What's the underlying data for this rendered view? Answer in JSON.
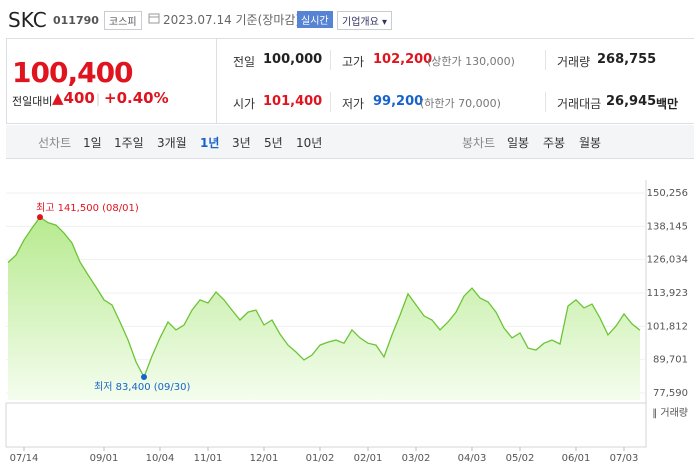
{
  "header": {
    "name": "SKC",
    "code": "011790",
    "market": "코스피",
    "date": "2023.07.14 기준(장마감)",
    "realtime": "실시간",
    "company_info": "기업개요"
  },
  "quote": {
    "price": "100,400",
    "change_label": "전일대비",
    "change": "400",
    "change_pct": "+0.40%",
    "stats": [
      {
        "label": "전일",
        "value": "100,000"
      },
      {
        "label": "고가",
        "value": "102,200",
        "note": "(상한가 130,000)",
        "color": "#e0141e"
      },
      {
        "label": "거래량",
        "value": "268,755"
      },
      {
        "label": "시가",
        "value": "101,400",
        "color": "#e0141e"
      },
      {
        "label": "저가",
        "value": "99,200",
        "note": "(하한가 70,000)",
        "color": "#1763c9"
      },
      {
        "label": "거래대금",
        "value": "26,945",
        "unit": "백만"
      }
    ]
  },
  "line_tabs": {
    "label": "선차트",
    "items": [
      "1일",
      "1주일",
      "3개월",
      "1년",
      "3년",
      "5년",
      "10년"
    ],
    "selected": "1년"
  },
  "candle_tabs": {
    "label": "봉차트",
    "items": [
      "일봉",
      "주봉",
      "월봉"
    ]
  },
  "chart_data": {
    "type": "area",
    "categories": [
      null,
      null,
      "07/14",
      null,
      null,
      null,
      null,
      null,
      null,
      null,
      null,
      null,
      "09/01",
      null,
      null,
      null,
      null,
      null,
      null,
      "10/04",
      null,
      null,
      null,
      null,
      null,
      "11/01",
      null,
      null,
      null,
      null,
      null,
      null,
      "12/01",
      null,
      null,
      null,
      null,
      null,
      null,
      "01/02",
      null,
      null,
      null,
      null,
      null,
      "02/01",
      null,
      null,
      null,
      null,
      null,
      "03/02",
      null,
      null,
      null,
      null,
      null,
      null,
      "04/03",
      null,
      null,
      null,
      null,
      null,
      "05/02",
      null,
      null,
      null,
      null,
      null,
      null,
      "06/01",
      null,
      null,
      null,
      null,
      null,
      "07/03",
      null,
      null
    ],
    "series": [
      {
        "color": "#6cc437",
        "values": [
          125000,
          127700,
          133200,
          137500,
          141500,
          139500,
          138600,
          135700,
          132100,
          125200,
          120500,
          116100,
          111400,
          109600,
          103400,
          96900,
          88900,
          83400,
          91000,
          97600,
          103400,
          100500,
          102300,
          107700,
          111400,
          110300,
          114300,
          111400,
          107700,
          104100,
          107000,
          107700,
          102300,
          104100,
          99000,
          95000,
          92500,
          89600,
          91400,
          95000,
          96100,
          96800,
          95700,
          100500,
          97600,
          95700,
          95000,
          90700,
          98700,
          105900,
          113600,
          109600,
          105600,
          104100,
          100500,
          103400,
          107000,
          112800,
          115700,
          112100,
          110700,
          107000,
          101200,
          97600,
          99400,
          93900,
          93200,
          95700,
          96800,
          95400,
          109200,
          111400,
          108500,
          109900,
          104800,
          98700,
          101900,
          106300,
          102700,
          100400
        ]
      }
    ],
    "ylim": [
      77590,
      150256
    ],
    "yticks": [
      {
        "value": 150256,
        "label": "150,256"
      },
      {
        "value": 138145,
        "label": "138,145"
      },
      {
        "value": 126034,
        "label": "126,034"
      },
      {
        "value": 113923,
        "label": "113,923"
      },
      {
        "value": 101812,
        "label": "101,812"
      },
      {
        "value": 89701,
        "label": "89,701"
      },
      {
        "value": 77590,
        "label": "77,590"
      }
    ],
    "grid": true,
    "annotations": [
      {
        "text": "최고 141,500 (08/01)",
        "index": 4,
        "color": "#e0141e"
      },
      {
        "text": "최저 83,400 (09/30)",
        "index": 17,
        "color": "#1763c9"
      }
    ],
    "volume_label": "거래량"
  }
}
